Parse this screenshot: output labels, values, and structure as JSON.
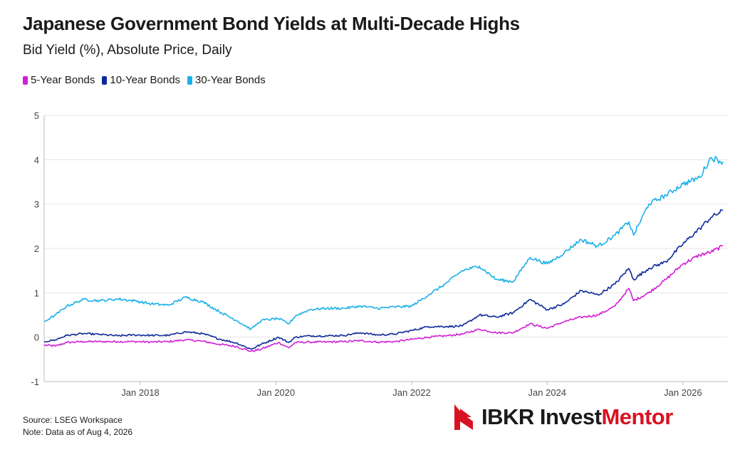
{
  "title": "Japanese Government Bond Yields at Multi-Decade Highs",
  "subtitle": "Bid Yield (%), Absolute Price, Daily",
  "footer": {
    "source": "Source: LSEG Workspace",
    "note": "Note: Data as of Aug 4, 2026"
  },
  "brand": {
    "part1": "IBKR Invest",
    "part2": "Mentor",
    "accent_color": "#d81222",
    "icon": "ibkr-flag-logo-icon"
  },
  "chart_data": {
    "type": "line",
    "title": "Japanese Government Bond Yields at Multi-Decade Highs",
    "subtitle": "Bid Yield (%), Absolute Price, Daily",
    "ylim": [
      -1,
      5
    ],
    "yticks": [
      "-1",
      "0",
      "1",
      "2",
      "3",
      "4",
      "5"
    ],
    "xlim": [
      "2016-08-01",
      "2026-08-31"
    ],
    "xticks": [
      {
        "date": "2018-01-01",
        "label": "Jan 2018"
      },
      {
        "date": "2020-01-01",
        "label": "Jan 2020"
      },
      {
        "date": "2022-01-01",
        "label": "Jan 2022"
      },
      {
        "date": "2024-01-01",
        "label": "Jan 2024"
      },
      {
        "date": "2026-01-01",
        "label": "Jan 2026"
      }
    ],
    "grid": true,
    "legend_position": "top-left",
    "series": [
      {
        "name": "5-Year Bonds",
        "color": "#d21fd8",
        "points": [
          [
            "2016-08-01",
            -0.18
          ],
          [
            "2016-10-01",
            -0.2
          ],
          [
            "2016-12-01",
            -0.12
          ],
          [
            "2017-03-01",
            -0.1
          ],
          [
            "2017-06-01",
            -0.1
          ],
          [
            "2017-09-01",
            -0.1
          ],
          [
            "2017-12-01",
            -0.1
          ],
          [
            "2018-03-01",
            -0.11
          ],
          [
            "2018-06-01",
            -0.1
          ],
          [
            "2018-09-01",
            -0.06
          ],
          [
            "2018-12-01",
            -0.09
          ],
          [
            "2019-03-01",
            -0.16
          ],
          [
            "2019-06-01",
            -0.21
          ],
          [
            "2019-08-20",
            -0.32
          ],
          [
            "2019-10-15",
            -0.27
          ],
          [
            "2020-01-15",
            -0.12
          ],
          [
            "2020-03-10",
            -0.24
          ],
          [
            "2020-04-15",
            -0.12
          ],
          [
            "2020-07-01",
            -0.11
          ],
          [
            "2020-10-01",
            -0.11
          ],
          [
            "2021-01-01",
            -0.1
          ],
          [
            "2021-04-01",
            -0.08
          ],
          [
            "2021-07-01",
            -0.11
          ],
          [
            "2021-10-01",
            -0.1
          ],
          [
            "2022-01-01",
            -0.05
          ],
          [
            "2022-04-01",
            0.0
          ],
          [
            "2022-07-01",
            0.03
          ],
          [
            "2022-10-01",
            0.07
          ],
          [
            "2023-01-01",
            0.18
          ],
          [
            "2023-04-01",
            0.1
          ],
          [
            "2023-07-01",
            0.1
          ],
          [
            "2023-10-01",
            0.3
          ],
          [
            "2024-01-01",
            0.2
          ],
          [
            "2024-04-01",
            0.35
          ],
          [
            "2024-07-01",
            0.45
          ],
          [
            "2024-10-01",
            0.5
          ],
          [
            "2025-01-01",
            0.7
          ],
          [
            "2025-03-15",
            1.1
          ],
          [
            "2025-04-10",
            0.82
          ],
          [
            "2025-07-01",
            1.0
          ],
          [
            "2025-10-01",
            1.3
          ],
          [
            "2026-01-01",
            1.65
          ],
          [
            "2026-04-01",
            1.85
          ],
          [
            "2026-06-01",
            1.92
          ],
          [
            "2026-08-04",
            2.05
          ]
        ]
      },
      {
        "name": "10-Year Bonds",
        "color": "#0e2a9a",
        "points": [
          [
            "2016-08-01",
            -0.1
          ],
          [
            "2016-10-01",
            -0.06
          ],
          [
            "2016-12-01",
            0.04
          ],
          [
            "2017-03-01",
            0.08
          ],
          [
            "2017-06-01",
            0.06
          ],
          [
            "2017-09-01",
            0.03
          ],
          [
            "2017-12-01",
            0.05
          ],
          [
            "2018-03-01",
            0.04
          ],
          [
            "2018-06-01",
            0.04
          ],
          [
            "2018-09-01",
            0.12
          ],
          [
            "2018-12-01",
            0.08
          ],
          [
            "2019-03-01",
            -0.04
          ],
          [
            "2019-06-01",
            -0.13
          ],
          [
            "2019-08-20",
            -0.27
          ],
          [
            "2019-10-15",
            -0.16
          ],
          [
            "2020-01-15",
            0.0
          ],
          [
            "2020-03-10",
            -0.12
          ],
          [
            "2020-04-15",
            0.0
          ],
          [
            "2020-07-01",
            0.03
          ],
          [
            "2020-10-01",
            0.03
          ],
          [
            "2021-01-01",
            0.04
          ],
          [
            "2021-04-01",
            0.1
          ],
          [
            "2021-07-01",
            0.05
          ],
          [
            "2021-10-01",
            0.07
          ],
          [
            "2022-01-01",
            0.15
          ],
          [
            "2022-04-01",
            0.24
          ],
          [
            "2022-07-01",
            0.24
          ],
          [
            "2022-10-01",
            0.25
          ],
          [
            "2023-01-01",
            0.5
          ],
          [
            "2023-04-01",
            0.45
          ],
          [
            "2023-07-01",
            0.55
          ],
          [
            "2023-10-01",
            0.85
          ],
          [
            "2024-01-01",
            0.62
          ],
          [
            "2024-04-01",
            0.75
          ],
          [
            "2024-07-01",
            1.05
          ],
          [
            "2024-10-01",
            0.95
          ],
          [
            "2025-01-01",
            1.2
          ],
          [
            "2025-03-15",
            1.55
          ],
          [
            "2025-04-10",
            1.3
          ],
          [
            "2025-07-01",
            1.55
          ],
          [
            "2025-10-01",
            1.7
          ],
          [
            "2026-01-01",
            2.1
          ],
          [
            "2026-04-01",
            2.45
          ],
          [
            "2026-06-01",
            2.7
          ],
          [
            "2026-08-04",
            2.85
          ]
        ]
      },
      {
        "name": "30-Year Bonds",
        "color": "#1ab0e8",
        "points": [
          [
            "2016-08-01",
            0.35
          ],
          [
            "2016-10-01",
            0.5
          ],
          [
            "2016-12-01",
            0.7
          ],
          [
            "2017-03-01",
            0.85
          ],
          [
            "2017-06-01",
            0.82
          ],
          [
            "2017-09-01",
            0.86
          ],
          [
            "2017-12-01",
            0.82
          ],
          [
            "2018-03-01",
            0.75
          ],
          [
            "2018-06-01",
            0.72
          ],
          [
            "2018-09-01",
            0.9
          ],
          [
            "2018-12-01",
            0.8
          ],
          [
            "2019-03-01",
            0.58
          ],
          [
            "2019-06-01",
            0.38
          ],
          [
            "2019-08-20",
            0.18
          ],
          [
            "2019-10-15",
            0.38
          ],
          [
            "2020-01-15",
            0.42
          ],
          [
            "2020-03-10",
            0.3
          ],
          [
            "2020-04-15",
            0.48
          ],
          [
            "2020-07-01",
            0.62
          ],
          [
            "2020-10-01",
            0.65
          ],
          [
            "2021-01-01",
            0.65
          ],
          [
            "2021-04-01",
            0.7
          ],
          [
            "2021-07-01",
            0.65
          ],
          [
            "2021-10-01",
            0.68
          ],
          [
            "2022-01-01",
            0.7
          ],
          [
            "2022-04-01",
            0.95
          ],
          [
            "2022-07-01",
            1.2
          ],
          [
            "2022-10-01",
            1.5
          ],
          [
            "2023-01-01",
            1.6
          ],
          [
            "2023-04-01",
            1.3
          ],
          [
            "2023-07-01",
            1.25
          ],
          [
            "2023-10-01",
            1.8
          ],
          [
            "2024-01-01",
            1.65
          ],
          [
            "2024-04-01",
            1.9
          ],
          [
            "2024-07-01",
            2.2
          ],
          [
            "2024-10-01",
            2.05
          ],
          [
            "2025-01-01",
            2.3
          ],
          [
            "2025-03-15",
            2.6
          ],
          [
            "2025-04-10",
            2.3
          ],
          [
            "2025-07-01",
            3.0
          ],
          [
            "2025-10-01",
            3.2
          ],
          [
            "2026-01-01",
            3.45
          ],
          [
            "2026-04-01",
            3.6
          ],
          [
            "2026-06-01",
            4.05
          ],
          [
            "2026-08-04",
            3.95
          ]
        ]
      }
    ]
  }
}
